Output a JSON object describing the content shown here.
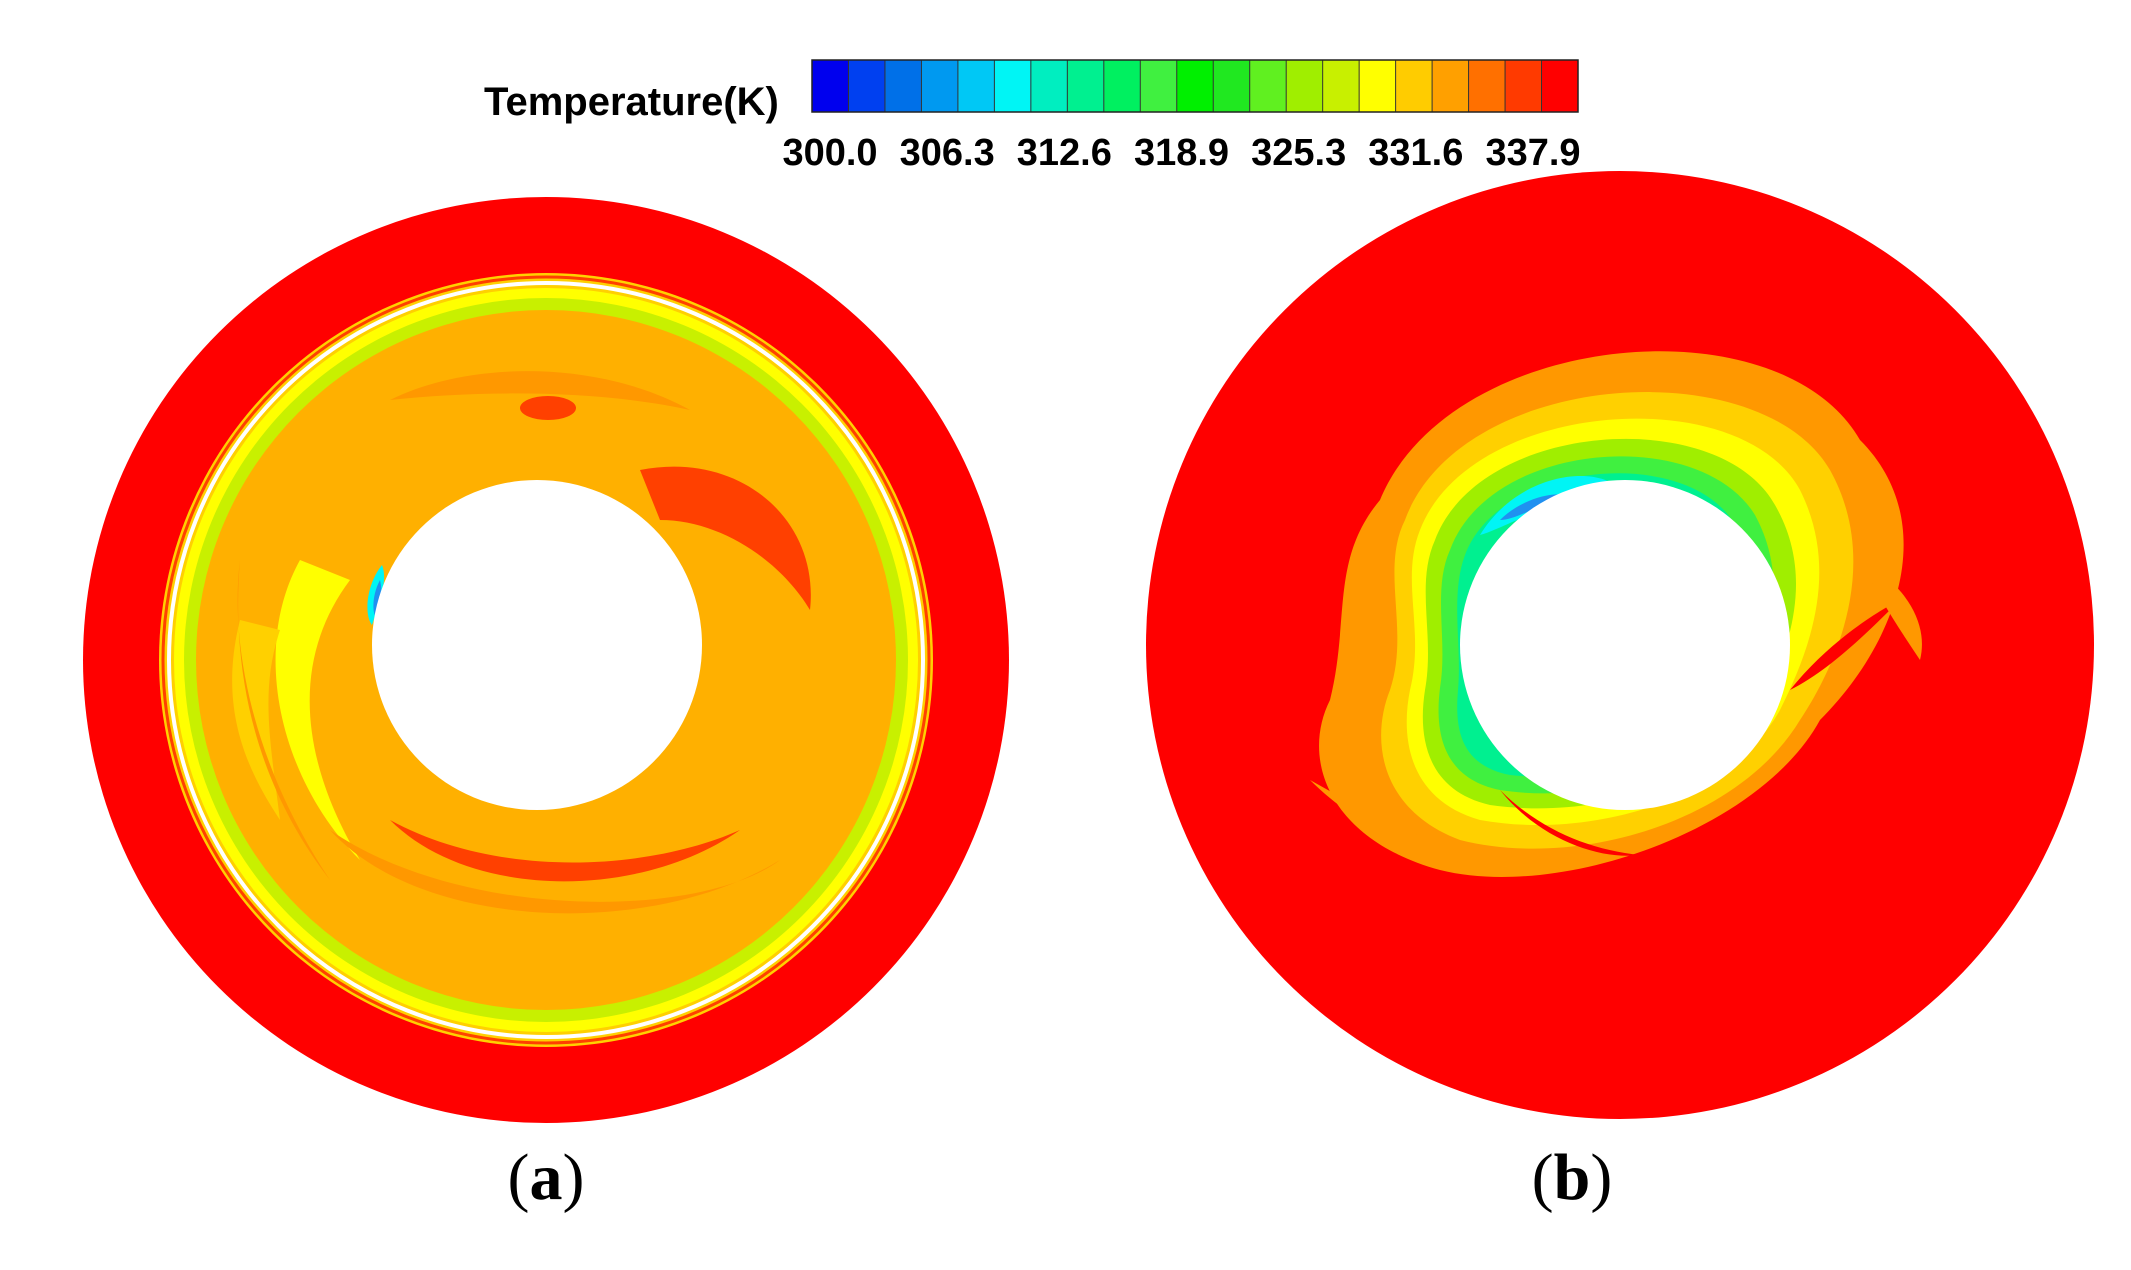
{
  "legend": {
    "title": "Temperature(K)",
    "tick_labels": [
      "300.0",
      "306.3",
      "312.6",
      "318.9",
      "325.3",
      "331.6",
      "337.9"
    ],
    "colors": [
      "#0000ee",
      "#0040f0",
      "#0070e8",
      "#0099f0",
      "#00c8f5",
      "#00f5f5",
      "#00eec0",
      "#00f090",
      "#00f060",
      "#40f040",
      "#00f000",
      "#20e820",
      "#60f020",
      "#a0ee00",
      "#c8f000",
      "#ffff00",
      "#ffcc00",
      "#ffa000",
      "#ff7000",
      "#ff3a00",
      "#ff0000"
    ]
  },
  "panels": [
    {
      "open": "(",
      "letter": "a",
      "close": ")"
    },
    {
      "open": "(",
      "letter": "b",
      "close": ")"
    }
  ],
  "palette": {
    "hot": "#ff0000",
    "red_orange": "#ff4000",
    "orange": "#ff9800",
    "light_orange": "#ffb000",
    "gold": "#ffd000",
    "yellow": "#ffff00",
    "yellow_green": "#c8f000",
    "green": "#40f000",
    "cyan_green": "#00f0a0",
    "cyan": "#00f5f5",
    "blue": "#2090f0",
    "white": "#ffffff"
  }
}
